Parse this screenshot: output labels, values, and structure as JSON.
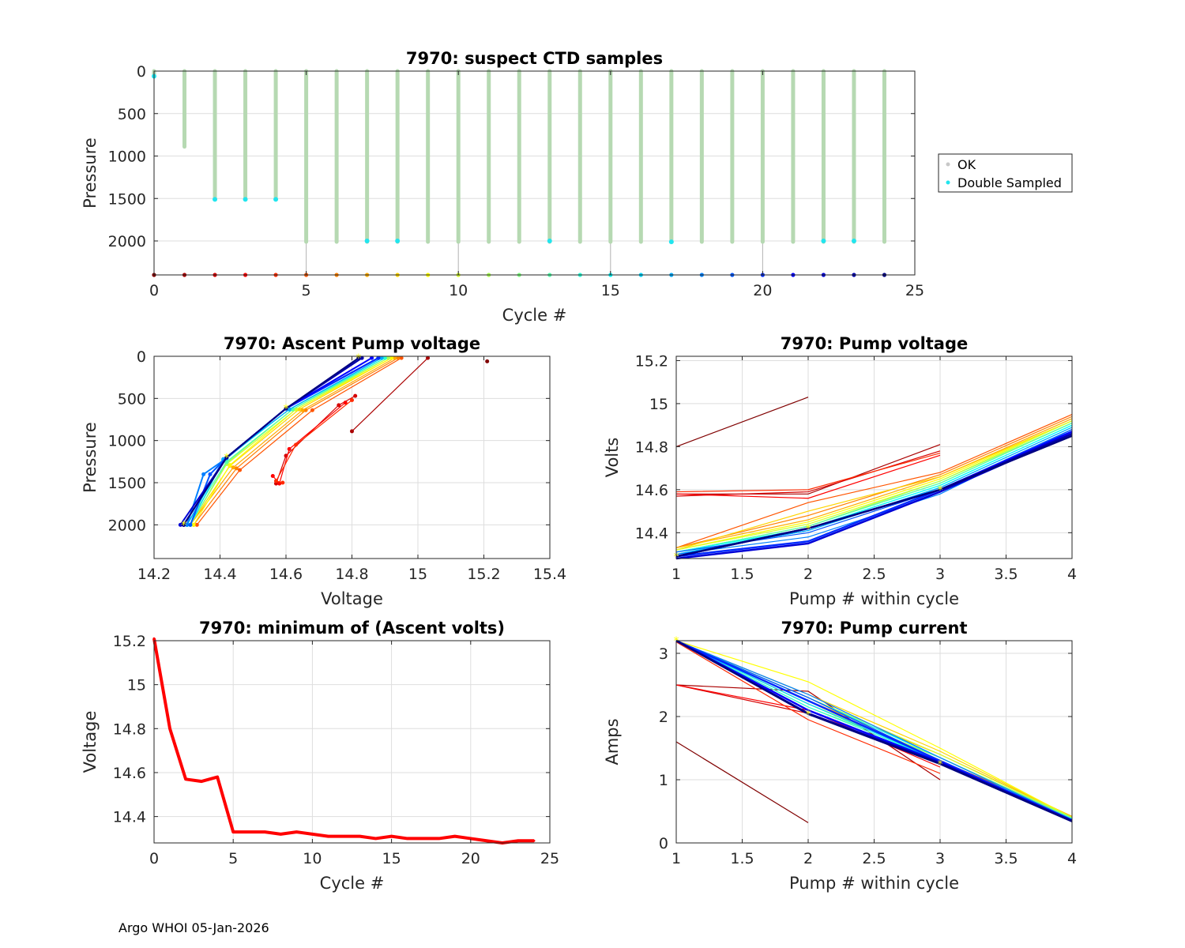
{
  "footer": "Argo WHOI 05-Jan-2026",
  "chart_data": [
    {
      "id": "suspect",
      "type": "scatter",
      "title": "7970: suspect CTD samples",
      "xlabel": "Cycle #",
      "ylabel": "Pressure",
      "xlim": [
        0,
        25
      ],
      "ylim": [
        0,
        2400
      ],
      "yreverse": true,
      "xticks": [
        0,
        5,
        10,
        15,
        20,
        25
      ],
      "yticks": [
        0,
        500,
        1000,
        1500,
        2000
      ],
      "legend": [
        {
          "label": "OK",
          "color": "#c8c8c8"
        },
        {
          "label": "Double Sampled",
          "color": "#22e5ee"
        }
      ],
      "profiles": [
        {
          "cycle": 0,
          "max_p": 60
        },
        {
          "cycle": 1,
          "max_p": 890
        },
        {
          "cycle": 2,
          "max_p": 1510
        },
        {
          "cycle": 3,
          "max_p": 1510
        },
        {
          "cycle": 4,
          "max_p": 1510
        },
        {
          "cycle": 5,
          "max_p": 2010
        },
        {
          "cycle": 6,
          "max_p": 2010
        },
        {
          "cycle": 7,
          "max_p": 2010
        },
        {
          "cycle": 8,
          "max_p": 2010
        },
        {
          "cycle": 9,
          "max_p": 2010
        },
        {
          "cycle": 10,
          "max_p": 2010
        },
        {
          "cycle": 11,
          "max_p": 2010
        },
        {
          "cycle": 12,
          "max_p": 2010
        },
        {
          "cycle": 13,
          "max_p": 2010
        },
        {
          "cycle": 14,
          "max_p": 2010
        },
        {
          "cycle": 15,
          "max_p": 2010
        },
        {
          "cycle": 16,
          "max_p": 2010
        },
        {
          "cycle": 17,
          "max_p": 2010
        },
        {
          "cycle": 18,
          "max_p": 2010
        },
        {
          "cycle": 19,
          "max_p": 2010
        },
        {
          "cycle": 20,
          "max_p": 2010
        },
        {
          "cycle": 21,
          "max_p": 2010
        },
        {
          "cycle": 22,
          "max_p": 2010
        },
        {
          "cycle": 23,
          "max_p": 2010
        },
        {
          "cycle": 24,
          "max_p": 2010
        }
      ],
      "double_sampled": [
        [
          0,
          60
        ],
        [
          2,
          1510
        ],
        [
          3,
          1510
        ],
        [
          4,
          1510
        ],
        [
          7,
          2000
        ],
        [
          8,
          2000
        ],
        [
          13,
          2000
        ],
        [
          17,
          2010
        ],
        [
          22,
          2000
        ],
        [
          23,
          2000
        ]
      ],
      "thin_lines_cycles": [
        5,
        10,
        15,
        20
      ],
      "bottom_markers_pressure": 2400
    },
    {
      "id": "ascent",
      "type": "line",
      "title": "7970: Ascent Pump voltage",
      "xlabel": "Voltage",
      "ylabel": "Pressure",
      "xlim": [
        14.2,
        15.4
      ],
      "ylim": [
        0,
        2400
      ],
      "yreverse": true,
      "xticks": [
        14.2,
        14.4,
        14.6,
        14.8,
        15,
        15.2,
        15.4
      ],
      "yticks": [
        0,
        500,
        1000,
        1500,
        2000
      ],
      "series": [
        {
          "cycle": 0,
          "x": [
            15.21
          ],
          "y": [
            60
          ]
        },
        {
          "cycle": 1,
          "x": [
            14.8,
            15.03
          ],
          "y": [
            890,
            20
          ]
        },
        {
          "cycle": 2,
          "x": [
            14.57,
            14.6,
            14.76,
            14.81
          ],
          "y": [
            1510,
            1180,
            580,
            470
          ]
        },
        {
          "cycle": 3,
          "x": [
            14.56,
            14.58,
            14.61,
            14.78
          ],
          "y": [
            1420,
            1510,
            1100,
            550
          ]
        },
        {
          "cycle": 4,
          "x": [
            14.59,
            14.57,
            14.63,
            14.8
          ],
          "y": [
            1500,
            1480,
            1050,
            520
          ]
        },
        {
          "cycle": 5,
          "x": [
            14.33,
            14.46,
            14.68,
            14.95
          ],
          "y": [
            2000,
            1350,
            640,
            20
          ]
        },
        {
          "cycle": 6,
          "x": [
            14.32,
            14.45,
            14.66,
            14.94
          ],
          "y": [
            2000,
            1330,
            640,
            20
          ]
        },
        {
          "cycle": 7,
          "x": [
            14.31,
            14.44,
            14.65,
            14.93
          ],
          "y": [
            2000,
            1320,
            640,
            20
          ]
        },
        {
          "cycle": 8,
          "x": [
            14.31,
            14.43,
            14.64,
            14.92
          ],
          "y": [
            2000,
            1300,
            630,
            20
          ]
        },
        {
          "cycle": 9,
          "x": [
            14.32,
            14.43,
            14.63,
            14.92
          ],
          "y": [
            2000,
            1290,
            630,
            20
          ]
        },
        {
          "cycle": 10,
          "x": [
            14.31,
            14.42,
            14.63,
            14.91
          ],
          "y": [
            2000,
            1280,
            630,
            20
          ]
        },
        {
          "cycle": 11,
          "x": [
            14.31,
            14.42,
            14.62,
            14.91
          ],
          "y": [
            2000,
            1270,
            630,
            20
          ]
        },
        {
          "cycle": 12,
          "x": [
            14.31,
            14.42,
            14.62,
            14.9
          ],
          "y": [
            2000,
            1260,
            630,
            20
          ]
        },
        {
          "cycle": 13,
          "x": [
            14.3,
            14.42,
            14.62,
            14.9
          ],
          "y": [
            2000,
            1250,
            630,
            20
          ]
        },
        {
          "cycle": 14,
          "x": [
            14.3,
            14.41,
            14.61,
            14.9
          ],
          "y": [
            2000,
            1240,
            630,
            20
          ]
        },
        {
          "cycle": 15,
          "x": [
            14.3,
            14.41,
            14.61,
            14.89
          ],
          "y": [
            2000,
            1230,
            630,
            20
          ]
        },
        {
          "cycle": 16,
          "x": [
            14.31,
            14.41,
            14.61,
            14.89
          ],
          "y": [
            2000,
            1230,
            630,
            20
          ]
        },
        {
          "cycle": 17,
          "x": [
            14.3,
            14.41,
            14.61,
            14.89
          ],
          "y": [
            2000,
            1220,
            630,
            20
          ]
        },
        {
          "cycle": 18,
          "x": [
            14.3,
            14.35,
            14.42,
            14.6,
            14.88
          ],
          "y": [
            2000,
            1400,
            1210,
            620,
            20
          ]
        },
        {
          "cycle": 19,
          "x": [
            14.31,
            14.37,
            14.42,
            14.6,
            14.88
          ],
          "y": [
            2000,
            1400,
            1200,
            620,
            20
          ]
        },
        {
          "cycle": 20,
          "x": [
            14.29,
            14.42,
            14.6,
            14.88
          ],
          "y": [
            2000,
            1200,
            620,
            20
          ]
        },
        {
          "cycle": 21,
          "x": [
            14.29,
            14.42,
            14.6,
            14.86
          ],
          "y": [
            2000,
            1200,
            620,
            20
          ]
        },
        {
          "cycle": 22,
          "x": [
            14.28,
            14.42,
            14.6,
            14.83
          ],
          "y": [
            2000,
            1200,
            620,
            20
          ]
        },
        {
          "cycle": 23,
          "x": [
            14.29,
            14.42,
            14.6,
            14.83
          ],
          "y": [
            2000,
            1200,
            620,
            20
          ]
        },
        {
          "cycle": 24,
          "x": [
            14.29,
            14.42,
            14.6,
            14.82
          ],
          "y": [
            2000,
            1200,
            620,
            20
          ]
        }
      ]
    },
    {
      "id": "pumpv",
      "type": "line",
      "title": "7970: Pump voltage",
      "xlabel": "Pump # within cycle",
      "ylabel": "Volts",
      "xlim": [
        1,
        4
      ],
      "ylim": [
        14.28,
        15.22
      ],
      "xticks": [
        1,
        1.5,
        2,
        2.5,
        3,
        3.5,
        4
      ],
      "yticks": [
        14.4,
        14.6,
        14.8,
        15,
        15.2
      ],
      "series": [
        {
          "cycle": 0,
          "y": [
            14.8,
            15.03
          ]
        },
        {
          "cycle": 1,
          "y": [
            14.58,
            14.58,
            14.81
          ]
        },
        {
          "cycle": 2,
          "y": [
            14.57,
            14.59,
            14.78
          ]
        },
        {
          "cycle": 3,
          "y": [
            14.58,
            14.56,
            14.76
          ]
        },
        {
          "cycle": 4,
          "y": [
            14.59,
            14.6,
            14.77
          ]
        },
        {
          "cycle": 5,
          "y": [
            14.33,
            14.54,
            14.68,
            14.95
          ]
        },
        {
          "cycle": 6,
          "y": [
            14.33,
            14.48,
            14.67,
            14.94
          ]
        },
        {
          "cycle": 7,
          "y": [
            14.33,
            14.46,
            14.66,
            14.93
          ]
        },
        {
          "cycle": 8,
          "y": [
            14.32,
            14.5,
            14.66,
            14.92
          ]
        },
        {
          "cycle": 9,
          "y": [
            14.32,
            14.45,
            14.65,
            14.92
          ]
        },
        {
          "cycle": 10,
          "y": [
            14.32,
            14.44,
            14.64,
            14.92
          ]
        },
        {
          "cycle": 11,
          "y": [
            14.31,
            14.43,
            14.64,
            14.91
          ]
        },
        {
          "cycle": 12,
          "y": [
            14.31,
            14.43,
            14.63,
            14.91
          ]
        },
        {
          "cycle": 13,
          "y": [
            14.31,
            14.43,
            14.63,
            14.91
          ]
        },
        {
          "cycle": 14,
          "y": [
            14.3,
            14.42,
            14.62,
            14.9
          ]
        },
        {
          "cycle": 15,
          "y": [
            14.31,
            14.42,
            14.62,
            14.9
          ]
        },
        {
          "cycle": 16,
          "y": [
            14.3,
            14.41,
            14.61,
            14.89
          ]
        },
        {
          "cycle": 17,
          "y": [
            14.3,
            14.41,
            14.61,
            14.89
          ]
        },
        {
          "cycle": 18,
          "y": [
            14.3,
            14.38,
            14.58,
            14.88
          ]
        },
        {
          "cycle": 19,
          "y": [
            14.31,
            14.4,
            14.6,
            14.88
          ]
        },
        {
          "cycle": 20,
          "y": [
            14.29,
            14.36,
            14.6,
            14.87
          ]
        },
        {
          "cycle": 21,
          "y": [
            14.29,
            14.42,
            14.6,
            14.87
          ]
        },
        {
          "cycle": 22,
          "y": [
            14.28,
            14.35,
            14.59,
            14.86
          ]
        },
        {
          "cycle": 23,
          "y": [
            14.29,
            14.42,
            14.6,
            14.86
          ]
        },
        {
          "cycle": 24,
          "y": [
            14.29,
            14.42,
            14.6,
            14.85
          ]
        }
      ]
    },
    {
      "id": "minv",
      "type": "line",
      "title": "7970: minimum of (Ascent volts)",
      "xlabel": "Cycle #",
      "ylabel": "Voltage",
      "xlim": [
        0,
        25
      ],
      "ylim": [
        14.28,
        15.2
      ],
      "xticks": [
        0,
        5,
        10,
        15,
        20,
        25
      ],
      "yticks": [
        14.4,
        14.6,
        14.8,
        15,
        15.2
      ],
      "x": [
        0,
        1,
        2,
        3,
        4,
        5,
        6,
        7,
        8,
        9,
        10,
        11,
        12,
        13,
        14,
        15,
        16,
        17,
        18,
        19,
        20,
        21,
        22,
        23,
        24
      ],
      "values": [
        15.21,
        14.8,
        14.57,
        14.56,
        14.58,
        14.33,
        14.33,
        14.33,
        14.32,
        14.33,
        14.32,
        14.31,
        14.31,
        14.31,
        14.3,
        14.31,
        14.3,
        14.3,
        14.3,
        14.31,
        14.3,
        14.29,
        14.28,
        14.29,
        14.29
      ],
      "color": "#ff0000"
    },
    {
      "id": "pumpc",
      "type": "line",
      "title": "7970: Pump current",
      "xlabel": "Pump # within cycle",
      "ylabel": "Amps",
      "xlim": [
        1,
        4
      ],
      "ylim": [
        0,
        3.2
      ],
      "xticks": [
        1,
        1.5,
        2,
        2.5,
        3,
        3.5,
        4
      ],
      "yticks": [
        0,
        1,
        2,
        3
      ],
      "series": [
        {
          "cycle": 0,
          "y": [
            1.6,
            0.32
          ]
        },
        {
          "cycle": 1,
          "y": [
            2.5,
            2.4,
            1.0
          ]
        },
        {
          "cycle": 2,
          "y": [
            2.5,
            2.05,
            1.25
          ]
        },
        {
          "cycle": 3,
          "y": [
            2.5,
            2.1,
            1.2
          ]
        },
        {
          "cycle": 4,
          "y": [
            3.18,
            1.95,
            1.1
          ]
        },
        {
          "cycle": 5,
          "y": [
            3.2,
            2.3,
            1.3,
            0.42
          ]
        },
        {
          "cycle": 6,
          "y": [
            3.2,
            2.2,
            1.35,
            0.4
          ]
        },
        {
          "cycle": 7,
          "y": [
            3.2,
            2.25,
            1.4,
            0.42
          ]
        },
        {
          "cycle": 8,
          "y": [
            3.2,
            2.35,
            1.45,
            0.41
          ]
        },
        {
          "cycle": 9,
          "y": [
            3.2,
            2.55,
            1.5,
            0.4
          ]
        },
        {
          "cycle": 10,
          "y": [
            3.2,
            2.3,
            1.4,
            0.4
          ]
        },
        {
          "cycle": 11,
          "y": [
            3.2,
            2.2,
            1.35,
            0.39
          ]
        },
        {
          "cycle": 12,
          "y": [
            3.2,
            2.15,
            1.35,
            0.4
          ]
        },
        {
          "cycle": 13,
          "y": [
            3.2,
            2.2,
            1.3,
            0.38
          ]
        },
        {
          "cycle": 14,
          "y": [
            3.2,
            2.15,
            1.3,
            0.38
          ]
        },
        {
          "cycle": 15,
          "y": [
            3.2,
            2.3,
            1.35,
            0.37
          ]
        },
        {
          "cycle": 16,
          "y": [
            3.2,
            2.2,
            1.3,
            0.37
          ]
        },
        {
          "cycle": 17,
          "y": [
            3.2,
            2.1,
            1.3,
            0.36
          ]
        },
        {
          "cycle": 18,
          "y": [
            3.2,
            2.35,
            1.35,
            0.37
          ]
        },
        {
          "cycle": 19,
          "y": [
            3.2,
            2.3,
            1.3,
            0.36
          ]
        },
        {
          "cycle": 20,
          "y": [
            3.2,
            2.25,
            1.3,
            0.36
          ]
        },
        {
          "cycle": 21,
          "y": [
            3.2,
            2.1,
            1.28,
            0.35
          ]
        },
        {
          "cycle": 22,
          "y": [
            3.2,
            2.05,
            1.27,
            0.35
          ]
        },
        {
          "cycle": 23,
          "y": [
            3.2,
            2.05,
            1.26,
            0.35
          ]
        },
        {
          "cycle": 24,
          "y": [
            3.2,
            2.04,
            1.25,
            0.34
          ]
        }
      ]
    }
  ]
}
